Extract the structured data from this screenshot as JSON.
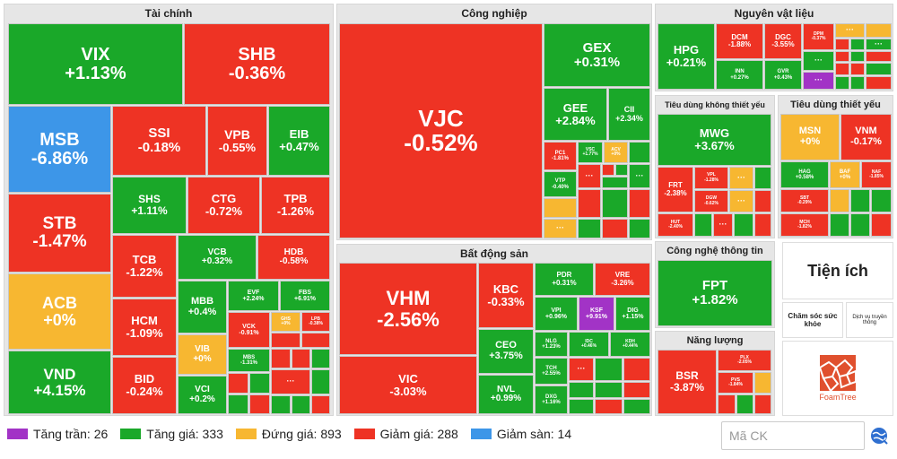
{
  "colors": {
    "up": "#1aa829",
    "down": "#ee3324",
    "flat": "#f7b731",
    "ceiling": "#a233c6",
    "floor": "#3d96e8"
  },
  "sectors": {
    "tai_chinh": "Tài chính",
    "cong_nghiep": "Công nghiệp",
    "nguyen_vat_lieu": "Nguyên vật liệu",
    "tieu_dung_ktv": "Tiêu dùng không thiết yếu",
    "tieu_dung_tv": "Tiêu dùng thiết yếu",
    "bat_dong_san": "Bất động sản",
    "cong_nghe": "Công nghệ thông tin",
    "nang_luong": "Năng lượng",
    "tien_ich": "Tiện ích",
    "cham_soc": "Chăm sóc sức khỏe",
    "dich_vu": "Dịch vụ truyền thông"
  },
  "logo": {
    "label": "FoamTree"
  },
  "legend": [
    {
      "label": "Tăng trần: 26",
      "color": "#a233c6"
    },
    {
      "label": "Tăng giá: 333",
      "color": "#1aa829"
    },
    {
      "label": "Đứng giá: 893",
      "color": "#f7b731"
    },
    {
      "label": "Giảm giá: 288",
      "color": "#ee3324"
    },
    {
      "label": "Giảm sàn: 14",
      "color": "#3d96e8"
    }
  ],
  "search": {
    "placeholder": "Mã CK"
  },
  "stocks": {
    "VIX": {
      "t": "VIX",
      "p": "+1.13%"
    },
    "SHB": {
      "t": "SHB",
      "p": "-0.36%"
    },
    "MSB": {
      "t": "MSB",
      "p": "-6.86%"
    },
    "SSI": {
      "t": "SSI",
      "p": "-0.18%"
    },
    "VPB": {
      "t": "VPB",
      "p": "-0.55%"
    },
    "EIB": {
      "t": "EIB",
      "p": "+0.47%"
    },
    "STB": {
      "t": "STB",
      "p": "-1.47%"
    },
    "SHS": {
      "t": "SHS",
      "p": "+1.11%"
    },
    "CTG": {
      "t": "CTG",
      "p": "-0.72%"
    },
    "TPB": {
      "t": "TPB",
      "p": "-1.26%"
    },
    "ACB": {
      "t": "ACB",
      "p": "+0%"
    },
    "TCB": {
      "t": "TCB",
      "p": "-1.22%"
    },
    "VCB": {
      "t": "VCB",
      "p": "+0.32%"
    },
    "HDB": {
      "t": "HDB",
      "p": "-0.58%"
    },
    "MBB": {
      "t": "MBB",
      "p": "+0.4%"
    },
    "EVF": {
      "t": "EVF",
      "p": "+2.24%"
    },
    "FBS": {
      "t": "FBS",
      "p": "+6.91%"
    },
    "HCM": {
      "t": "HCM",
      "p": "-1.09%"
    },
    "VCK": {
      "t": "VCK",
      "p": "-0.91%"
    },
    "GHS": {
      "t": "GHS",
      "p": "+0%"
    },
    "LPB": {
      "t": "LPB",
      "p": "-0.38%"
    },
    "VIB": {
      "t": "VIB",
      "p": "+0%"
    },
    "MBS": {
      "t": "MBS",
      "p": "-1.31%"
    },
    "VND": {
      "t": "VND",
      "p": "+4.15%"
    },
    "BID": {
      "t": "BID",
      "p": "-0.24%"
    },
    "VCI": {
      "t": "VCI",
      "p": "+0.2%"
    },
    "VJC": {
      "t": "VJC",
      "p": "-0.52%"
    },
    "GEX": {
      "t": "GEX",
      "p": "+0.31%"
    },
    "GEE": {
      "t": "GEE",
      "p": "+2.84%"
    },
    "CII": {
      "t": "CII",
      "p": "+2.34%"
    },
    "PC1": {
      "t": "PC1",
      "p": "-1.81%"
    },
    "VSC": {
      "t": "VSC",
      "p": "+1.77%"
    },
    "ACV": {
      "t": "ACV",
      "p": "+0%"
    },
    "VTP": {
      "t": "VTP",
      "p": "-0.40%"
    },
    "HPG": {
      "t": "HPG",
      "p": "+0.21%"
    },
    "DCM": {
      "t": "DCM",
      "p": "-1.88%"
    },
    "DGC": {
      "t": "DGC",
      "p": "-3.55%"
    },
    "DPM": {
      "t": "DPM",
      "p": "-0.37%"
    },
    "INN": {
      "t": "INN",
      "p": "+0.27%"
    },
    "GVR": {
      "t": "GVR",
      "p": "+0.43%"
    },
    "MWG": {
      "t": "MWG",
      "p": "+3.67%"
    },
    "FRT": {
      "t": "FRT",
      "p": "-2.38%"
    },
    "VPL": {
      "t": "VPL",
      "p": "-1.28%"
    },
    "DGW": {
      "t": "DGW",
      "p": "-0.62%"
    },
    "HUT": {
      "t": "HUT",
      "p": "-2.40%"
    },
    "MSN": {
      "t": "MSN",
      "p": "+0%"
    },
    "VNM": {
      "t": "VNM",
      "p": "-0.17%"
    },
    "HAG": {
      "t": "HAG",
      "p": "+0.58%"
    },
    "BAF": {
      "t": "BAF",
      "p": "+0%"
    },
    "NAF": {
      "t": "NAF",
      "p": "-1.85%"
    },
    "SBT": {
      "t": "SBT",
      "p": "-0.29%"
    },
    "MCH": {
      "t": "MCH",
      "p": "-1.82%"
    },
    "VHM": {
      "t": "VHM",
      "p": "-2.56%"
    },
    "KBC": {
      "t": "KBC",
      "p": "-0.33%"
    },
    "PDR": {
      "t": "PDR",
      "p": "+0.31%"
    },
    "VRE": {
      "t": "VRE",
      "p": "-3.26%"
    },
    "VPI": {
      "t": "VPI",
      "p": "+0.96%"
    },
    "KSF": {
      "t": "KSF",
      "p": "+9.91%"
    },
    "DIG": {
      "t": "DIG",
      "p": "+1.15%"
    },
    "CEO": {
      "t": "CEO",
      "p": "+3.75%"
    },
    "NLG": {
      "t": "NLG",
      "p": "+1.23%"
    },
    "IDC": {
      "t": "IDC",
      "p": "+0.46%"
    },
    "KDH": {
      "t": "KDH",
      "p": "+0.44%"
    },
    "VIC": {
      "t": "VIC",
      "p": "-3.03%"
    },
    "NVL": {
      "t": "NVL",
      "p": "+0.99%"
    },
    "TCH": {
      "t": "TCH",
      "p": "+2.55%"
    },
    "DXG": {
      "t": "DXG",
      "p": "+1.16%"
    },
    "FPT": {
      "t": "FPT",
      "p": "+1.82%"
    },
    "BSR": {
      "t": "BSR",
      "p": "-3.87%"
    },
    "PLX": {
      "t": "PLX",
      "p": "-2.05%"
    },
    "PVS": {
      "t": "PVS",
      "p": "-1.84%"
    },
    "dots": "···"
  }
}
